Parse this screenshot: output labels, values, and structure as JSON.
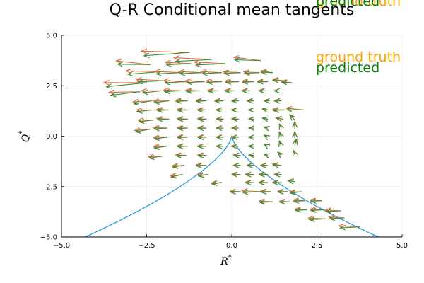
{
  "chart_data": {
    "type": "quiver",
    "title": "Q-R Conditional mean tangents",
    "xlabel": "R",
    "xlabel_sup": "*",
    "ylabel": "Q",
    "ylabel_sup": "*",
    "xlim": [
      -5.0,
      5.0
    ],
    "ylim": [
      -5.0,
      5.0
    ],
    "xticks": [
      -5.0,
      -2.5,
      0.0,
      2.5,
      5.0
    ],
    "yticks": [
      -5.0,
      -2.5,
      0.0,
      2.5,
      5.0
    ],
    "xtick_labels": [
      "-5.0",
      "-2.5",
      "0.0",
      "2.5",
      "5.0"
    ],
    "ytick_labels": [
      "-5.0",
      "-2.5",
      "0.0",
      "2.5",
      "5.0"
    ],
    "grid": true,
    "legend": {
      "placement": "top-right",
      "entries": [
        {
          "label": "ground truth",
          "color": "#FFA500"
        },
        {
          "label": "predicted",
          "color": "#008000"
        },
        {
          "label": "ground truth",
          "color": "#FFA500"
        },
        {
          "label": "predicted",
          "color": "#008000"
        }
      ]
    },
    "colors": {
      "ground_truth": "#E8663C",
      "predicted": "#3B8F3B",
      "boundary": "#1E96DC"
    },
    "boundary_curve": {
      "description": "Vieillefosse discriminant line",
      "x_range": [
        -4.3,
        4.3
      ]
    },
    "arrows": [
      {
        "x": -1.25,
        "y": 4.15,
        "u": -1.4,
        "v": -0.05
      },
      {
        "x": -0.6,
        "y": 3.8,
        "u": -1.1,
        "v": 0.0
      },
      {
        "x": 0.85,
        "y": 3.75,
        "u": -0.8,
        "v": 0.1
      },
      {
        "x": -2.4,
        "y": 3.55,
        "u": -1.0,
        "v": 0.1
      },
      {
        "x": -1.2,
        "y": 3.6,
        "u": -0.75,
        "v": 0.0
      },
      {
        "x": -0.2,
        "y": 3.6,
        "u": -0.9,
        "v": 0.0
      },
      {
        "x": -2.1,
        "y": 3.2,
        "u": -1.0,
        "v": -0.05
      },
      {
        "x": -1.5,
        "y": 3.15,
        "u": -0.75,
        "v": 0.0
      },
      {
        "x": -0.9,
        "y": 3.15,
        "u": -0.65,
        "v": 0.0
      },
      {
        "x": -0.3,
        "y": 3.15,
        "u": -0.6,
        "v": 0.0
      },
      {
        "x": 0.25,
        "y": 3.15,
        "u": -0.5,
        "v": 0.0
      },
      {
        "x": 0.8,
        "y": 3.15,
        "u": -0.45,
        "v": 0.0
      },
      {
        "x": 1.2,
        "y": 3.15,
        "u": -0.35,
        "v": 0.05
      },
      {
        "x": -2.5,
        "y": 2.65,
        "u": -1.25,
        "v": -0.1
      },
      {
        "x": -2.0,
        "y": 2.75,
        "u": -0.8,
        "v": 0.0
      },
      {
        "x": -1.35,
        "y": 2.7,
        "u": -0.65,
        "v": 0.0
      },
      {
        "x": -0.8,
        "y": 2.7,
        "u": -0.55,
        "v": 0.0
      },
      {
        "x": -0.3,
        "y": 2.7,
        "u": -0.45,
        "v": 0.0
      },
      {
        "x": 0.2,
        "y": 2.7,
        "u": -0.4,
        "v": 0.0
      },
      {
        "x": 0.65,
        "y": 2.7,
        "u": -0.35,
        "v": 0.0
      },
      {
        "x": 1.05,
        "y": 2.7,
        "u": -0.3,
        "v": 0.0
      },
      {
        "x": 1.5,
        "y": 2.75,
        "u": -0.3,
        "v": 0.05
      },
      {
        "x": 1.75,
        "y": 2.65,
        "u": -0.3,
        "v": 0.05
      },
      {
        "x": -2.7,
        "y": 2.2,
        "u": -0.9,
        "v": -0.1
      },
      {
        "x": -2.05,
        "y": 2.25,
        "u": -0.6,
        "v": -0.05
      },
      {
        "x": -1.5,
        "y": 2.25,
        "u": -0.5,
        "v": 0.0
      },
      {
        "x": -0.95,
        "y": 2.25,
        "u": -0.4,
        "v": 0.0
      },
      {
        "x": -0.4,
        "y": 2.25,
        "u": -0.3,
        "v": 0.0
      },
      {
        "x": 0.1,
        "y": 2.25,
        "u": -0.3,
        "v": 0.0
      },
      {
        "x": 0.55,
        "y": 2.25,
        "u": -0.25,
        "v": 0.0
      },
      {
        "x": 1.0,
        "y": 2.25,
        "u": -0.2,
        "v": 0.0
      },
      {
        "x": 1.4,
        "y": 2.25,
        "u": -0.15,
        "v": 0.0
      },
      {
        "x": -2.35,
        "y": 1.75,
        "u": -0.55,
        "v": -0.1
      },
      {
        "x": -1.85,
        "y": 1.75,
        "u": -0.45,
        "v": -0.05
      },
      {
        "x": -1.3,
        "y": 1.75,
        "u": -0.35,
        "v": 0.0
      },
      {
        "x": -0.75,
        "y": 1.75,
        "u": -0.3,
        "v": 0.0
      },
      {
        "x": -0.25,
        "y": 1.75,
        "u": -0.25,
        "v": 0.0
      },
      {
        "x": 0.2,
        "y": 1.75,
        "u": -0.2,
        "v": 0.0
      },
      {
        "x": 0.65,
        "y": 1.75,
        "u": -0.2,
        "v": 0.0
      },
      {
        "x": 1.1,
        "y": 1.75,
        "u": -0.15,
        "v": 0.0
      },
      {
        "x": 1.45,
        "y": 1.75,
        "u": -0.2,
        "v": 0.0
      },
      {
        "x": -2.35,
        "y": 1.3,
        "u": -0.45,
        "v": -0.05
      },
      {
        "x": -1.85,
        "y": 1.3,
        "u": -0.35,
        "v": 0.0
      },
      {
        "x": -1.3,
        "y": 1.3,
        "u": -0.3,
        "v": 0.0
      },
      {
        "x": -0.75,
        "y": 1.3,
        "u": -0.25,
        "v": 0.0
      },
      {
        "x": -0.25,
        "y": 1.3,
        "u": -0.2,
        "v": 0.0
      },
      {
        "x": 0.2,
        "y": 1.3,
        "u": -0.2,
        "v": 0.0
      },
      {
        "x": 0.65,
        "y": 1.3,
        "u": -0.15,
        "v": 0.0
      },
      {
        "x": 1.05,
        "y": 1.3,
        "u": -0.15,
        "v": 0.05
      },
      {
        "x": 1.55,
        "y": 1.3,
        "u": -0.35,
        "v": 0.0
      },
      {
        "x": 2.1,
        "y": 1.3,
        "u": -0.5,
        "v": 0.05
      },
      {
        "x": -2.3,
        "y": 0.8,
        "u": -0.45,
        "v": -0.05
      },
      {
        "x": -1.85,
        "y": 0.85,
        "u": -0.35,
        "v": 0.0
      },
      {
        "x": -1.3,
        "y": 0.85,
        "u": -0.3,
        "v": 0.0
      },
      {
        "x": -0.75,
        "y": 0.85,
        "u": -0.25,
        "v": 0.0
      },
      {
        "x": -0.25,
        "y": 0.85,
        "u": -0.2,
        "v": 0.0
      },
      {
        "x": 0.2,
        "y": 0.85,
        "u": -0.2,
        "v": 0.0
      },
      {
        "x": 0.65,
        "y": 0.85,
        "u": -0.15,
        "v": 0.0
      },
      {
        "x": 1.05,
        "y": 0.85,
        "u": -0.15,
        "v": 0.05
      },
      {
        "x": 1.5,
        "y": 0.85,
        "u": -0.2,
        "v": 0.05
      },
      {
        "x": 1.85,
        "y": 0.8,
        "u": -0.15,
        "v": 0.25
      },
      {
        "x": -2.4,
        "y": 0.35,
        "u": -0.45,
        "v": -0.1
      },
      {
        "x": -1.9,
        "y": 0.4,
        "u": -0.4,
        "v": 0.0
      },
      {
        "x": -1.3,
        "y": 0.4,
        "u": -0.3,
        "v": 0.0
      },
      {
        "x": -0.75,
        "y": 0.4,
        "u": -0.25,
        "v": 0.0
      },
      {
        "x": -0.25,
        "y": 0.4,
        "u": -0.2,
        "v": 0.0
      },
      {
        "x": 0.2,
        "y": 0.4,
        "u": -0.2,
        "v": 0.0
      },
      {
        "x": 0.65,
        "y": 0.4,
        "u": -0.15,
        "v": 0.0
      },
      {
        "x": 1.05,
        "y": 0.4,
        "u": -0.1,
        "v": 0.05
      },
      {
        "x": 1.45,
        "y": 0.4,
        "u": -0.05,
        "v": 0.2
      },
      {
        "x": 1.85,
        "y": 0.35,
        "u": 0.0,
        "v": 0.35
      },
      {
        "x": -1.9,
        "y": -0.05,
        "u": -0.4,
        "v": -0.05
      },
      {
        "x": -1.3,
        "y": -0.05,
        "u": -0.3,
        "v": 0.0
      },
      {
        "x": -0.75,
        "y": -0.05,
        "u": -0.25,
        "v": 0.0
      },
      {
        "x": -0.25,
        "y": -0.05,
        "u": -0.2,
        "v": 0.0
      },
      {
        "x": 0.2,
        "y": -0.05,
        "u": -0.2,
        "v": 0.0
      },
      {
        "x": 0.65,
        "y": -0.05,
        "u": -0.15,
        "v": 0.0
      },
      {
        "x": 1.05,
        "y": -0.05,
        "u": -0.1,
        "v": 0.1
      },
      {
        "x": 1.45,
        "y": -0.05,
        "u": -0.05,
        "v": 0.25
      },
      {
        "x": 1.85,
        "y": -0.1,
        "u": 0.0,
        "v": 0.3
      },
      {
        "x": -1.9,
        "y": -0.5,
        "u": -0.4,
        "v": -0.05
      },
      {
        "x": -1.3,
        "y": -0.5,
        "u": -0.3,
        "v": 0.0
      },
      {
        "x": -0.75,
        "y": -0.5,
        "u": -0.25,
        "v": 0.0
      },
      {
        "x": -0.25,
        "y": -0.5,
        "u": -0.2,
        "v": 0.0
      },
      {
        "x": 0.2,
        "y": -0.5,
        "u": -0.2,
        "v": 0.0
      },
      {
        "x": 0.65,
        "y": -0.5,
        "u": -0.15,
        "v": 0.0
      },
      {
        "x": 1.05,
        "y": -0.5,
        "u": -0.1,
        "v": 0.1
      },
      {
        "x": 1.45,
        "y": -0.5,
        "u": -0.05,
        "v": 0.25
      },
      {
        "x": 1.85,
        "y": -0.45,
        "u": 0.05,
        "v": 0.3
      },
      {
        "x": -2.05,
        "y": -1.0,
        "u": -0.4,
        "v": -0.05
      },
      {
        "x": -1.35,
        "y": -0.95,
        "u": -0.3,
        "v": 0.0
      },
      {
        "x": -0.75,
        "y": -0.95,
        "u": -0.25,
        "v": 0.0
      },
      {
        "x": 0.25,
        "y": -0.95,
        "u": -0.2,
        "v": 0.0
      },
      {
        "x": 0.65,
        "y": -0.95,
        "u": -0.15,
        "v": 0.0
      },
      {
        "x": 1.05,
        "y": -0.95,
        "u": -0.1,
        "v": 0.05
      },
      {
        "x": 1.45,
        "y": -0.95,
        "u": -0.1,
        "v": 0.15
      },
      {
        "x": 1.85,
        "y": -0.9,
        "u": -0.05,
        "v": 0.2
      },
      {
        "x": -1.4,
        "y": -1.45,
        "u": -0.35,
        "v": -0.05
      },
      {
        "x": -0.75,
        "y": -1.45,
        "u": -0.3,
        "v": 0.0
      },
      {
        "x": 0.25,
        "y": -1.45,
        "u": -0.2,
        "v": 0.0
      },
      {
        "x": 0.65,
        "y": -1.45,
        "u": -0.2,
        "v": 0.0
      },
      {
        "x": 1.05,
        "y": -1.45,
        "u": -0.2,
        "v": 0.0
      },
      {
        "x": 1.45,
        "y": -1.45,
        "u": -0.25,
        "v": 0.05
      },
      {
        "x": -1.45,
        "y": -1.9,
        "u": -0.35,
        "v": -0.1
      },
      {
        "x": -0.7,
        "y": -1.9,
        "u": -0.3,
        "v": -0.05
      },
      {
        "x": 0.25,
        "y": -1.9,
        "u": -0.25,
        "v": 0.0
      },
      {
        "x": 0.65,
        "y": -1.9,
        "u": -0.25,
        "v": 0.0
      },
      {
        "x": 1.05,
        "y": -1.9,
        "u": -0.25,
        "v": 0.0
      },
      {
        "x": 1.45,
        "y": -1.9,
        "u": -0.2,
        "v": 0.0
      },
      {
        "x": -0.3,
        "y": -2.3,
        "u": -0.3,
        "v": -0.05
      },
      {
        "x": 0.65,
        "y": -2.3,
        "u": -0.25,
        "v": 0.0
      },
      {
        "x": 1.05,
        "y": -2.3,
        "u": -0.25,
        "v": 0.0
      },
      {
        "x": 1.45,
        "y": -2.3,
        "u": -0.25,
        "v": 0.0
      },
      {
        "x": 1.85,
        "y": -2.25,
        "u": -0.2,
        "v": 0.05
      },
      {
        "x": 0.25,
        "y": -2.75,
        "u": -0.3,
        "v": 0.0
      },
      {
        "x": 0.85,
        "y": -2.75,
        "u": -0.55,
        "v": 0.0
      },
      {
        "x": 1.15,
        "y": -2.75,
        "u": -0.3,
        "v": 0.0
      },
      {
        "x": 1.65,
        "y": -2.75,
        "u": -0.3,
        "v": 0.0
      },
      {
        "x": 2.05,
        "y": -2.75,
        "u": -0.35,
        "v": -0.05
      },
      {
        "x": 1.2,
        "y": -3.25,
        "u": -0.4,
        "v": 0.0
      },
      {
        "x": 1.7,
        "y": -3.25,
        "u": -0.3,
        "v": 0.0
      },
      {
        "x": 2.15,
        "y": -3.2,
        "u": -0.35,
        "v": 0.0
      },
      {
        "x": 2.65,
        "y": -3.2,
        "u": -0.35,
        "v": 0.0
      },
      {
        "x": 2.2,
        "y": -3.65,
        "u": -0.35,
        "v": 0.0
      },
      {
        "x": 2.7,
        "y": -3.65,
        "u": -0.4,
        "v": 0.0
      },
      {
        "x": 3.2,
        "y": -3.7,
        "u": -0.45,
        "v": 0.0
      },
      {
        "x": 2.75,
        "y": -4.1,
        "u": -0.5,
        "v": 0.0
      },
      {
        "x": 3.3,
        "y": -4.05,
        "u": -0.45,
        "v": 0.0
      },
      {
        "x": 3.75,
        "y": -4.5,
        "u": -0.6,
        "v": 0.0
      }
    ]
  }
}
